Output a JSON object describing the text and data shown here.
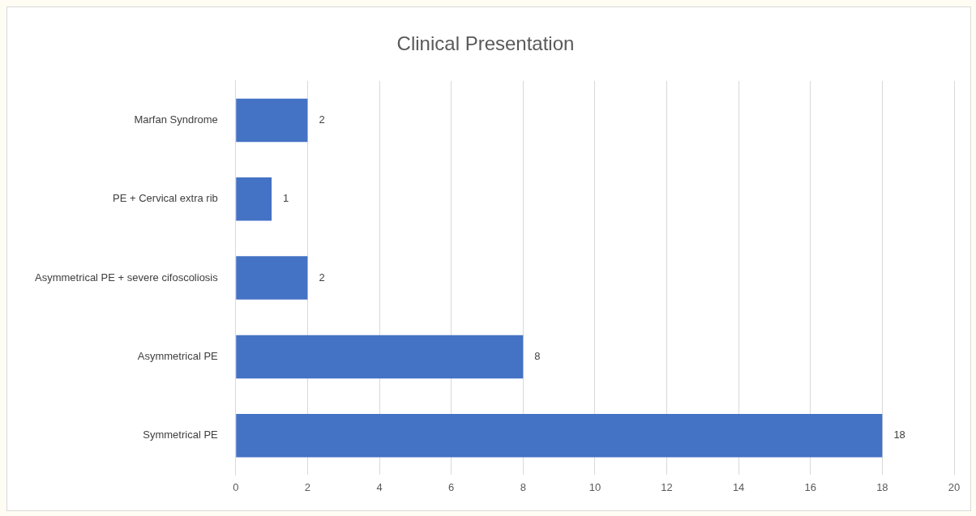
{
  "chart_data": {
    "type": "bar",
    "title": "Clinical Presentation",
    "orientation": "horizontal",
    "categories": [
      "Marfan Syndrome",
      "PE + Cervical extra rib",
      "Asymmetrical PE + severe cifoscoliosis",
      "Asymmetrical PE",
      "Symmetrical PE"
    ],
    "values": [
      2,
      1,
      2,
      8,
      18
    ],
    "color": "#4472c4",
    "xlim": [
      0,
      20
    ],
    "xticks": [
      0,
      2,
      4,
      6,
      8,
      10,
      12,
      14,
      16,
      18,
      20
    ],
    "grid": "x",
    "data_labels": true
  }
}
